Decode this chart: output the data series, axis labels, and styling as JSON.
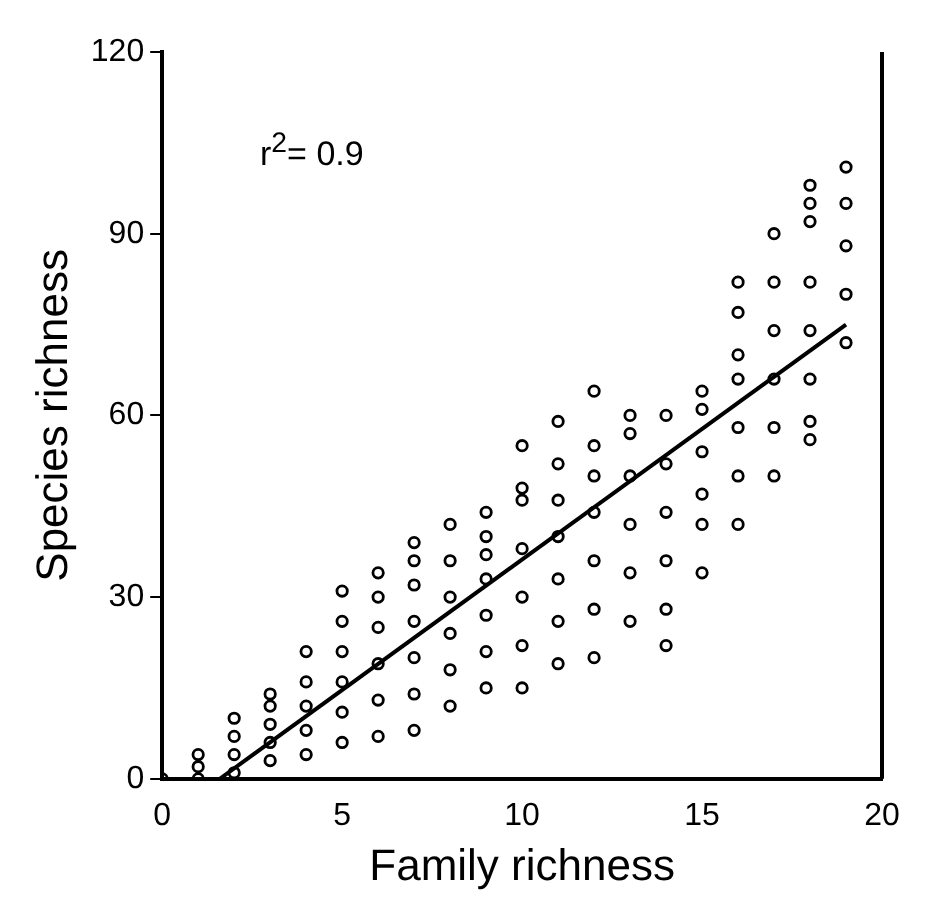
{
  "chart_data": {
    "type": "scatter",
    "xlabel": "Family richness",
    "ylabel": "Species richness",
    "xlim": [
      0,
      20
    ],
    "xticks": [
      0,
      5,
      10,
      15,
      20
    ],
    "ylim": [
      0,
      120
    ],
    "yticks": [
      0,
      30,
      60,
      90,
      120
    ],
    "grid": false,
    "legend": false,
    "marker": "circle",
    "annotations": [
      "r$^{2}$= 0.9"
    ],
    "series": [
      {
        "color": "#000000",
        "x": [
          0,
          1,
          1,
          1,
          2,
          2,
          2,
          2,
          3,
          3,
          3,
          3,
          3,
          4,
          4,
          4,
          4,
          4,
          5,
          5,
          5,
          5,
          5,
          5,
          6,
          6,
          6,
          6,
          6,
          6,
          7,
          7,
          7,
          7,
          7,
          7,
          7,
          8,
          8,
          8,
          8,
          8,
          8,
          9,
          9,
          9,
          9,
          9,
          9,
          9,
          10,
          10,
          10,
          10,
          10,
          10,
          10,
          11,
          11,
          11,
          11,
          11,
          11,
          11,
          12,
          12,
          12,
          12,
          12,
          12,
          12,
          13,
          13,
          13,
          13,
          13,
          13,
          14,
          14,
          14,
          14,
          14,
          14,
          15,
          15,
          15,
          15,
          15,
          15,
          16,
          16,
          16,
          16,
          16,
          16,
          16,
          17,
          17,
          17,
          17,
          17,
          17,
          18,
          18,
          18,
          18,
          18,
          18,
          18,
          18,
          19,
          19,
          19,
          19,
          19
        ],
        "values": [
          0,
          0,
          2,
          4,
          1,
          4,
          7,
          10,
          3,
          6,
          9,
          12,
          14,
          4,
          8,
          12,
          16,
          21,
          6,
          11,
          16,
          21,
          26,
          31,
          7,
          13,
          19,
          25,
          30,
          34,
          8,
          14,
          20,
          26,
          32,
          36,
          39,
          12,
          18,
          24,
          30,
          36,
          42,
          15,
          21,
          27,
          33,
          37,
          40,
          44,
          15,
          22,
          30,
          38,
          46,
          48,
          55,
          19,
          26,
          33,
          40,
          46,
          52,
          59,
          20,
          28,
          36,
          44,
          50,
          55,
          64,
          26,
          34,
          42,
          50,
          57,
          60,
          22,
          28,
          36,
          44,
          52,
          60,
          34,
          42,
          47,
          54,
          61,
          64,
          42,
          50,
          58,
          66,
          70,
          77,
          82,
          50,
          58,
          66,
          74,
          82,
          90,
          56,
          59,
          66,
          74,
          82,
          92,
          95,
          98,
          72,
          80,
          88,
          95,
          101
        ]
      },
      {
        "type": "line",
        "color": "#000000",
        "marker": "none",
        "x": [
          1.6,
          19
        ],
        "values": [
          0,
          75
        ]
      }
    ]
  }
}
